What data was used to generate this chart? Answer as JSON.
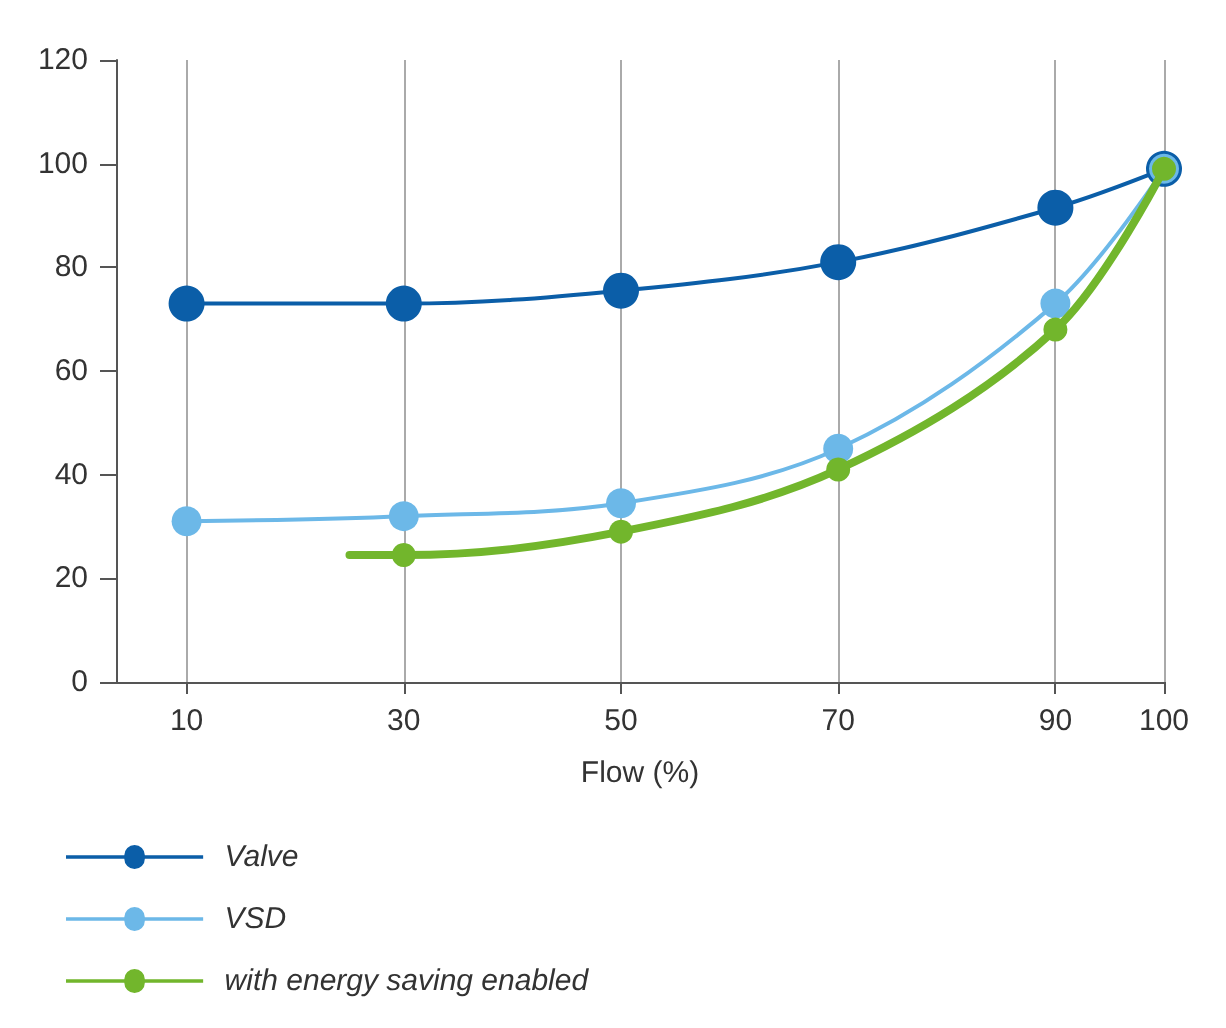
{
  "chart_data": {
    "type": "line",
    "xlabel": "Flow (%)",
    "xlim": [
      3.5,
      100
    ],
    "xticks": [
      10,
      30,
      50,
      70,
      90,
      100
    ],
    "ylim": [
      0,
      120
    ],
    "yticks": [
      0,
      20,
      40,
      60,
      80,
      100,
      120
    ],
    "grid": "x",
    "legend": "bottom left",
    "marker": "circle",
    "line_style": "solid",
    "series": [
      {
        "name": "Valve",
        "color": "#0b5ea8",
        "x": [
          10,
          30,
          50,
          70,
          90,
          100
        ],
        "values": [
          73,
          73,
          75.5,
          81,
          91.5,
          99
        ]
      },
      {
        "name": "VSD",
        "color": "#6cb8e8",
        "x": [
          10,
          30,
          50,
          70,
          90,
          100
        ],
        "values": [
          31,
          32,
          34.5,
          45,
          73,
          99
        ]
      },
      {
        "name": "with energy saving enabled",
        "color": "#72b62c",
        "x": [
          25,
          30,
          50,
          70,
          90,
          100
        ],
        "values": [
          24.5,
          24.5,
          29,
          41,
          68,
          99
        ]
      }
    ]
  }
}
